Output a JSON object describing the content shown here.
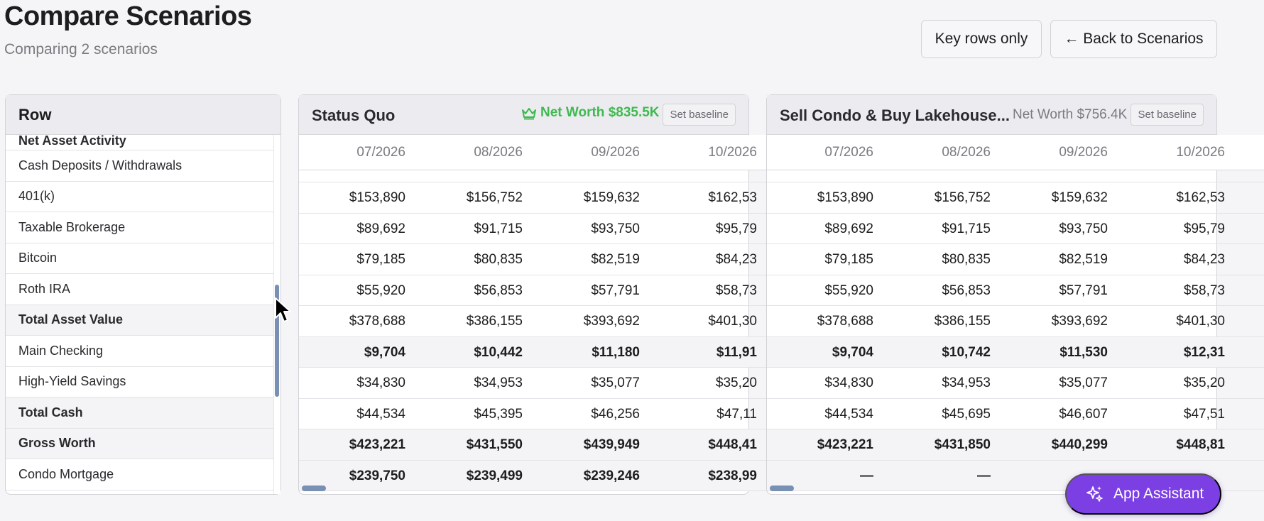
{
  "page": {
    "title": "Compare Scenarios",
    "subtitle": "Comparing 2 scenarios"
  },
  "header_buttons": {
    "key_rows": "Key rows only",
    "back": "← Back to Scenarios"
  },
  "row_panel": {
    "header": "Row",
    "partial_row": "Net Asset Activity",
    "rows": [
      {
        "label": "Cash Deposits / Withdrawals",
        "bold": false
      },
      {
        "label": "401(k)",
        "bold": false
      },
      {
        "label": "Taxable Brokerage",
        "bold": false
      },
      {
        "label": "Bitcoin",
        "bold": false
      },
      {
        "label": "Roth IRA",
        "bold": false
      },
      {
        "label": "Total Asset Value",
        "bold": true
      },
      {
        "label": "Main Checking",
        "bold": false
      },
      {
        "label": "High-Yield Savings",
        "bold": false
      },
      {
        "label": "Total Cash",
        "bold": true
      },
      {
        "label": "Gross Worth",
        "bold": true
      },
      {
        "label": "Condo Mortgage",
        "bold": false
      }
    ]
  },
  "scenarios": [
    {
      "name": "Status Quo",
      "net_worth": "Net Worth $835.5K",
      "best": true,
      "baseline_label": "Set baseline",
      "dates": [
        "07/2026",
        "08/2026",
        "09/2026",
        "10/2026"
      ],
      "rows": [
        [
          "$153,890",
          "$156,752",
          "$159,632",
          "$162,53"
        ],
        [
          "$89,692",
          "$91,715",
          "$93,750",
          "$95,79"
        ],
        [
          "$79,185",
          "$80,835",
          "$82,519",
          "$84,23"
        ],
        [
          "$55,920",
          "$56,853",
          "$57,791",
          "$58,73"
        ],
        [
          "$378,688",
          "$386,155",
          "$393,692",
          "$401,30"
        ],
        [
          "$9,704",
          "$10,442",
          "$11,180",
          "$11,91"
        ],
        [
          "$34,830",
          "$34,953",
          "$35,077",
          "$35,20"
        ],
        [
          "$44,534",
          "$45,395",
          "$46,256",
          "$47,11"
        ],
        [
          "$423,221",
          "$431,550",
          "$439,949",
          "$448,41"
        ],
        [
          "$239,750",
          "$239,499",
          "$239,246",
          "$238,99"
        ]
      ]
    },
    {
      "name": "Sell Condo & Buy Lakehouse...",
      "net_worth": "Net Worth $756.4K",
      "best": false,
      "baseline_label": "Set baseline",
      "dates": [
        "07/2026",
        "08/2026",
        "09/2026",
        "10/2026"
      ],
      "rows": [
        [
          "$153,890",
          "$156,752",
          "$159,632",
          "$162,53"
        ],
        [
          "$89,692",
          "$91,715",
          "$93,750",
          "$95,79"
        ],
        [
          "$79,185",
          "$80,835",
          "$82,519",
          "$84,23"
        ],
        [
          "$55,920",
          "$56,853",
          "$57,791",
          "$58,73"
        ],
        [
          "$378,688",
          "$386,155",
          "$393,692",
          "$401,30"
        ],
        [
          "$9,704",
          "$10,742",
          "$11,530",
          "$12,31"
        ],
        [
          "$34,830",
          "$34,953",
          "$35,077",
          "$35,20"
        ],
        [
          "$44,534",
          "$45,695",
          "$46,607",
          "$47,51"
        ],
        [
          "$423,221",
          "$431,850",
          "$440,299",
          "$448,81"
        ],
        [
          "—",
          "—",
          "",
          ""
        ]
      ]
    }
  ],
  "assistant": {
    "label": "App Assistant"
  },
  "colors": {
    "best_green": "#3fb950",
    "assistant_purple": "#7b3fe4",
    "scroll_thumb": "#7890b4"
  }
}
